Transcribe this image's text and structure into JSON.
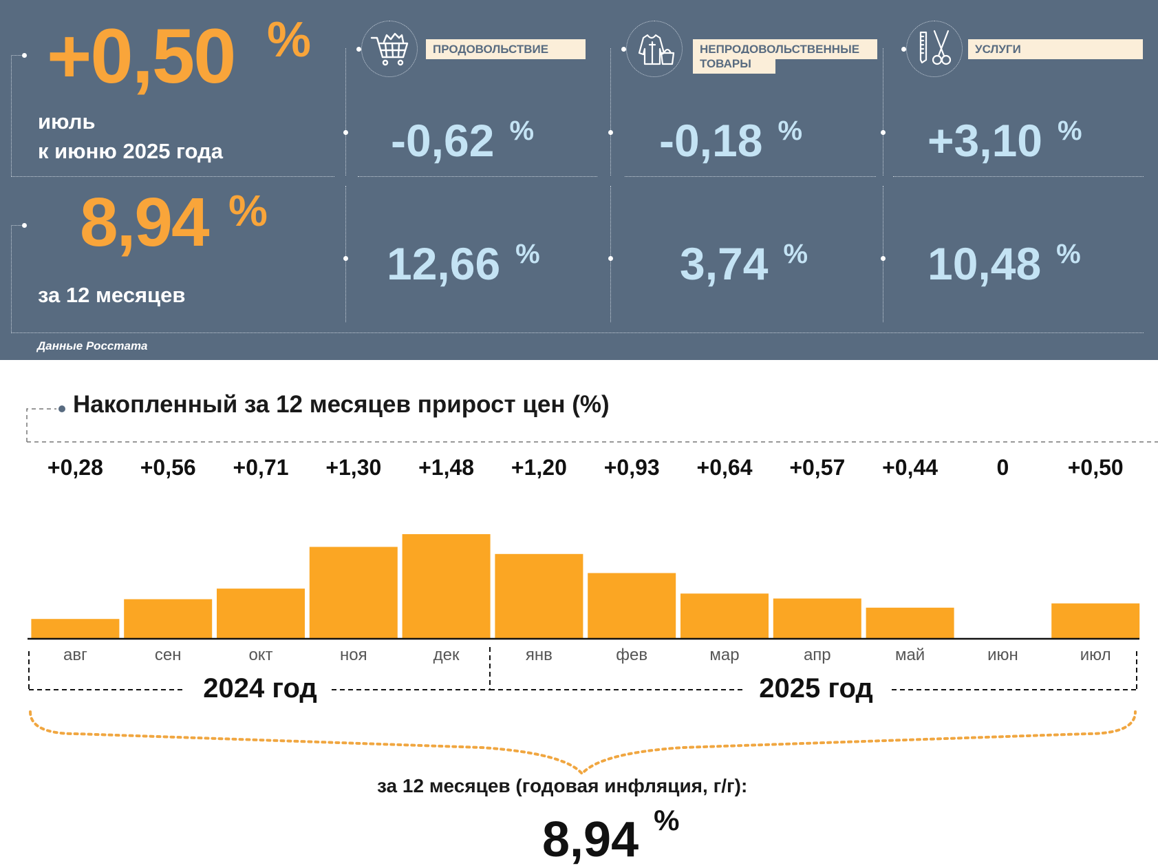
{
  "monthly": {
    "value": "+0,50",
    "unit": "%",
    "label_line1": "июль",
    "label_line2": "к июню 2025 года"
  },
  "annual": {
    "value": "8,94",
    "unit": "%",
    "label": "за 12 месяцев"
  },
  "categories": [
    {
      "name": "ПРОДОВОЛЬСТВИЕ",
      "icon": "shopping-cart-icon",
      "monthly": "-0,62",
      "annual": "12,66",
      "unit": "%"
    },
    {
      "name_line1": "НЕПРОДОВОЛЬСТВЕННЫЕ",
      "name_line2": "ТОВАРЫ",
      "icon": "clothes-and-bag-icon",
      "monthly": "-0,18",
      "annual": "3,74",
      "unit": "%"
    },
    {
      "name": "УСЛУГИ",
      "icon": "comb-and-scissors-icon",
      "monthly": "+3,10",
      "annual": "10,48",
      "unit": "%"
    }
  ],
  "source": "Данные Росстата",
  "colors": {
    "panel": "#586b80",
    "accent_orange": "#f9a53a",
    "light_blue": "#c4e3f4",
    "label_bg": "#fbeed9",
    "bar": "#fba623"
  },
  "chart_data": {
    "type": "bar",
    "title": "Накопленный за 12 месяцев прирост цен (%)",
    "categories": [
      "авг",
      "сен",
      "окт",
      "ноя",
      "дек",
      "янв",
      "фев",
      "мар",
      "апр",
      "май",
      "июн",
      "июл"
    ],
    "values": [
      0.28,
      0.56,
      0.71,
      1.3,
      1.48,
      1.2,
      0.93,
      0.64,
      0.57,
      0.44,
      0,
      0.5
    ],
    "data_labels": [
      "+0,28",
      "+0,56",
      "+0,71",
      "+1,30",
      "+1,48",
      "+1,20",
      "+0,93",
      "+0,64",
      "+0,57",
      "+0,44",
      "0",
      "+0,50"
    ],
    "years": [
      {
        "label": "2024 год",
        "months": [
          "авг",
          "сен",
          "окт",
          "ноя",
          "дек"
        ]
      },
      {
        "label": "2025 год",
        "months": [
          "янв",
          "фев",
          "мар",
          "апр",
          "май",
          "июн",
          "июл"
        ]
      }
    ],
    "ylim": [
      0,
      1.48
    ],
    "grid": false,
    "summary_label": "за 12 месяцев (годовая инфляция, г/г):",
    "summary_value": "8,94",
    "summary_unit": "%"
  }
}
